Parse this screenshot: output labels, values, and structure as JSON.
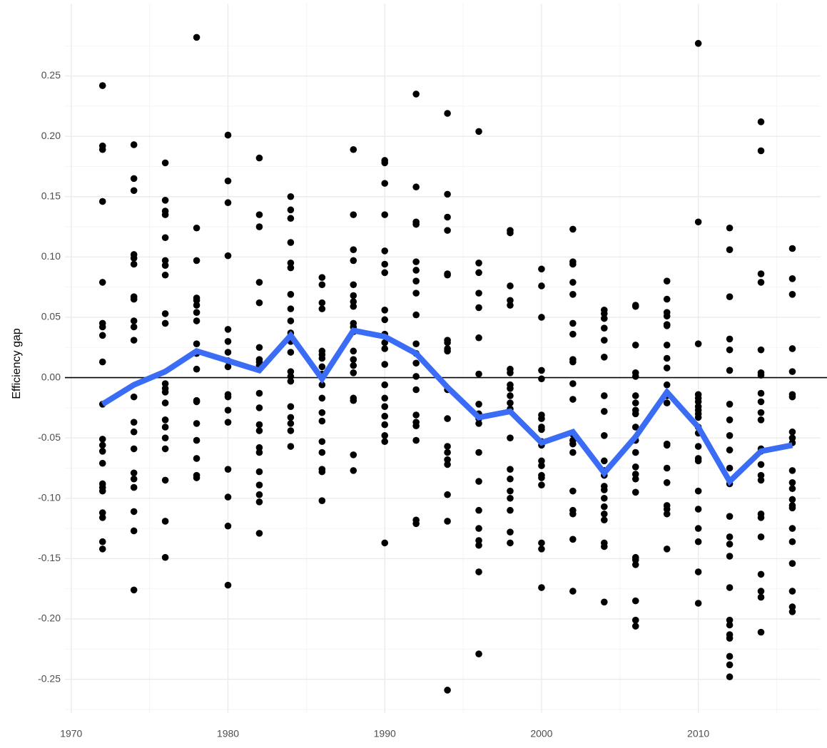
{
  "chart_data": {
    "type": "scatter",
    "y_label": "Efficiency gap",
    "xlim": [
      1969.6,
      2017.8
    ],
    "ylim": [
      -0.278,
      0.31
    ],
    "xticks": [
      1970,
      1980,
      1990,
      2000,
      2010
    ],
    "yticks": [
      {
        "value": -0.25,
        "label": "-0.25"
      },
      {
        "value": -0.2,
        "label": "-0.20"
      },
      {
        "value": -0.15,
        "label": "-0.15"
      },
      {
        "value": -0.1,
        "label": "-0.10"
      },
      {
        "value": -0.05,
        "label": "-0.05"
      },
      {
        "value": 0,
        "label": "0.00"
      },
      {
        "value": 0.05,
        "label": "0.05"
      },
      {
        "value": 0.1,
        "label": "0.10"
      },
      {
        "value": 0.15,
        "label": "0.15"
      },
      {
        "value": 0.2,
        "label": "0.20"
      },
      {
        "value": 0.25,
        "label": "0.25"
      }
    ],
    "grid": true,
    "hline": 0,
    "point_color": "#000000",
    "groups": [
      {
        "x": 1972,
        "values": [
          0.242,
          0.192,
          0.189,
          0.146,
          0.079,
          0.045,
          0.042,
          0.035,
          0.013,
          -0.022,
          -0.051,
          -0.056,
          -0.061,
          -0.071,
          -0.088,
          -0.091,
          -0.094,
          -0.112,
          -0.116,
          -0.136,
          -0.142
        ]
      },
      {
        "x": 1974,
        "values": [
          0.193,
          0.165,
          0.155,
          0.102,
          0.099,
          0.094,
          0.067,
          0.065,
          0.047,
          0.042,
          0.031,
          -0.016,
          -0.037,
          -0.045,
          -0.059,
          -0.079,
          -0.084,
          -0.091,
          -0.111,
          -0.127,
          -0.176
        ]
      },
      {
        "x": 1976,
        "values": [
          0.178,
          0.147,
          0.138,
          0.135,
          0.116,
          0.097,
          0.093,
          0.085,
          0.053,
          0.045,
          -0.005,
          -0.009,
          -0.012,
          -0.021,
          -0.035,
          -0.041,
          -0.05,
          -0.059,
          -0.085,
          -0.119,
          -0.149
        ]
      },
      {
        "x": 1978,
        "values": [
          0.282,
          0.124,
          0.097,
          0.066,
          0.064,
          0.06,
          0.054,
          0.047,
          0.028,
          0.02,
          0.007,
          -0.019,
          -0.02,
          -0.038,
          -0.052,
          -0.067,
          -0.081,
          -0.083
        ]
      },
      {
        "x": 1980,
        "values": [
          0.201,
          0.163,
          0.145,
          0.101,
          0.04,
          0.03,
          0.021,
          0.014,
          0.009,
          -0.014,
          -0.016,
          -0.027,
          -0.037,
          -0.076,
          -0.099,
          -0.123,
          -0.172
        ]
      },
      {
        "x": 1982,
        "values": [
          0.182,
          0.135,
          0.125,
          0.079,
          0.062,
          0.025,
          0.015,
          0.013,
          0.01,
          0.007,
          -0.013,
          -0.025,
          -0.039,
          -0.044,
          -0.058,
          -0.062,
          -0.078,
          -0.089,
          -0.097,
          -0.103,
          -0.129
        ]
      },
      {
        "x": 1984,
        "values": [
          0.15,
          0.139,
          0.132,
          0.112,
          0.095,
          0.091,
          0.069,
          0.057,
          0.047,
          0.037,
          0.03,
          0.021,
          0.005,
          0.001,
          -0.003,
          -0.024,
          -0.033,
          -0.038,
          -0.044,
          -0.057
        ]
      },
      {
        "x": 1986,
        "values": [
          0.083,
          0.077,
          0.062,
          0.057,
          0.022,
          0.019,
          0.016,
          0.009,
          0.003,
          -0.006,
          -0.017,
          -0.029,
          -0.036,
          -0.053,
          -0.062,
          -0.076,
          -0.078,
          -0.102
        ]
      },
      {
        "x": 1988,
        "values": [
          0.189,
          0.135,
          0.106,
          0.097,
          0.077,
          0.068,
          0.063,
          0.059,
          0.045,
          0.042,
          0.038,
          0.022,
          0.015,
          0.01,
          0.004,
          -0.017,
          -0.019,
          -0.064,
          -0.077
        ]
      },
      {
        "x": 1990,
        "values": [
          0.18,
          0.178,
          0.161,
          0.135,
          0.105,
          0.094,
          0.087,
          0.056,
          0.048,
          0.036,
          0.029,
          0.024,
          0.011,
          -0.006,
          -0.017,
          -0.024,
          -0.032,
          -0.039,
          -0.048,
          -0.053,
          -0.137
        ]
      },
      {
        "x": 1992,
        "values": [
          0.235,
          0.158,
          0.129,
          0.127,
          0.096,
          0.089,
          0.08,
          0.07,
          0.052,
          0.028,
          0.02,
          0.012,
          0.001,
          -0.01,
          -0.031,
          -0.037,
          -0.04,
          -0.052,
          -0.118,
          -0.121
        ]
      },
      {
        "x": 1994,
        "values": [
          0.219,
          0.152,
          0.133,
          0.122,
          0.086,
          0.085,
          0.031,
          0.029,
          0.024,
          0.022,
          -0.01,
          -0.034,
          -0.057,
          -0.062,
          -0.068,
          -0.072,
          -0.097,
          -0.119,
          -0.259
        ]
      },
      {
        "x": 1996,
        "values": [
          0.204,
          0.095,
          0.087,
          0.07,
          0.058,
          0.033,
          0.003,
          -0.022,
          -0.03,
          -0.034,
          -0.038,
          -0.062,
          -0.086,
          -0.11,
          -0.125,
          -0.135,
          -0.139,
          -0.161,
          -0.229
        ]
      },
      {
        "x": 1998,
        "values": [
          0.122,
          0.12,
          0.076,
          0.064,
          0.06,
          0.007,
          0.004,
          -0.006,
          -0.009,
          -0.015,
          -0.021,
          -0.026,
          -0.05,
          -0.076,
          -0.084,
          -0.094,
          -0.1,
          -0.11,
          -0.128,
          -0.137
        ]
      },
      {
        "x": 2000,
        "values": [
          0.09,
          0.076,
          0.05,
          0.006,
          -0.001,
          -0.031,
          -0.034,
          -0.041,
          -0.043,
          -0.053,
          -0.056,
          -0.069,
          -0.073,
          -0.081,
          -0.083,
          -0.089,
          -0.137,
          -0.142,
          -0.174
        ]
      },
      {
        "x": 2002,
        "values": [
          0.123,
          0.096,
          0.094,
          0.079,
          0.069,
          0.045,
          0.036,
          0.015,
          0.013,
          -0.005,
          -0.018,
          -0.047,
          -0.052,
          -0.055,
          -0.062,
          -0.094,
          -0.11,
          -0.113,
          -0.134,
          -0.177
        ]
      },
      {
        "x": 2004,
        "values": [
          0.056,
          0.053,
          0.049,
          0.041,
          0.031,
          0.017,
          -0.015,
          -0.028,
          -0.048,
          -0.069,
          -0.077,
          -0.081,
          -0.09,
          -0.093,
          -0.1,
          -0.107,
          -0.113,
          -0.118,
          -0.137,
          -0.14,
          -0.186
        ]
      },
      {
        "x": 2006,
        "values": [
          0.06,
          0.059,
          0.027,
          0.004,
          0.001,
          -0.015,
          -0.021,
          -0.027,
          -0.03,
          -0.041,
          -0.052,
          -0.062,
          -0.074,
          -0.08,
          -0.084,
          -0.095,
          -0.149,
          -0.151,
          -0.155,
          -0.185,
          -0.201,
          -0.206
        ]
      },
      {
        "x": 2008,
        "values": [
          0.08,
          0.065,
          0.054,
          0.051,
          0.044,
          0.043,
          0.027,
          0.016,
          0.008,
          -0.006,
          -0.015,
          -0.021,
          -0.055,
          -0.056,
          -0.075,
          -0.087,
          -0.106,
          -0.109,
          -0.113,
          -0.142
        ]
      },
      {
        "x": 2010,
        "values": [
          0.277,
          0.129,
          0.028,
          -0.014,
          -0.017,
          -0.02,
          -0.024,
          -0.027,
          -0.03,
          -0.033,
          -0.041,
          -0.046,
          -0.057,
          -0.067,
          -0.069,
          -0.094,
          -0.109,
          -0.125,
          -0.136,
          -0.161,
          -0.187
        ]
      },
      {
        "x": 2012,
        "values": [
          0.124,
          0.106,
          0.067,
          0.032,
          0.023,
          0.006,
          -0.022,
          -0.035,
          -0.048,
          -0.06,
          -0.075,
          -0.088,
          -0.115,
          -0.132,
          -0.138,
          -0.148,
          -0.174,
          -0.201,
          -0.205,
          -0.213,
          -0.216,
          -0.231,
          -0.238,
          -0.248
        ]
      },
      {
        "x": 2014,
        "values": [
          0.212,
          0.188,
          0.086,
          0.079,
          0.023,
          0.004,
          0.002,
          -0.013,
          -0.02,
          -0.029,
          -0.035,
          -0.059,
          -0.061,
          -0.072,
          -0.081,
          -0.085,
          -0.113,
          -0.116,
          -0.132,
          -0.163,
          -0.177,
          -0.182,
          -0.211
        ]
      },
      {
        "x": 2016,
        "values": [
          0.107,
          0.082,
          0.069,
          0.024,
          0.005,
          -0.014,
          -0.016,
          -0.045,
          -0.05,
          -0.054,
          -0.077,
          -0.087,
          -0.092,
          -0.101,
          -0.106,
          -0.108,
          -0.125,
          -0.136,
          -0.154,
          -0.177,
          -0.19,
          -0.194
        ]
      }
    ],
    "line": {
      "color": "#3b6cf5",
      "x": [
        1972,
        1974,
        1976,
        1978,
        1980,
        1982,
        1984,
        1986,
        1988,
        1990,
        1992,
        1994,
        1996,
        1998,
        2000,
        2002,
        2004,
        2006,
        2008,
        2010,
        2012,
        2014,
        2016
      ],
      "values": [
        -0.022,
        -0.006,
        0.005,
        0.022,
        0.014,
        0.006,
        0.035,
        -0.001,
        0.039,
        0.034,
        0.02,
        -0.008,
        -0.033,
        -0.028,
        -0.054,
        -0.045,
        -0.079,
        -0.049,
        -0.012,
        -0.041,
        -0.086,
        -0.061,
        -0.056
      ]
    }
  }
}
